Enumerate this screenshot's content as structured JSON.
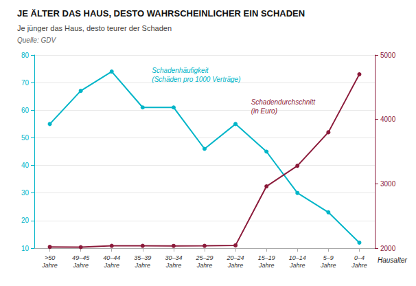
{
  "chart_data": {
    "type": "line",
    "title": "JE ÄLTER DAS HAUS, DESTO WAHRSCHEINLICHER EIN SCHADEN",
    "subtitle": "Je jünger das Haus, desto teurer der Schaden",
    "source": "Quelle: GDV",
    "xlabel": "Hausalter",
    "categories": [
      ">50\nJahre",
      "49–45\nJahre",
      "40–44\nJahre",
      "35–39\nJahre",
      "30–34\nJahre",
      "25–29\nJahre",
      "20–24\nJahre",
      "15–19\nJahre",
      "10–14\nJahre",
      "5–9\nJahre",
      "0–4\nJahre"
    ],
    "series": [
      {
        "name": "Schadenhäufigkeit\n(Schäden pro 1000 Verträge)",
        "color": "#00b5c8",
        "marker": "circle",
        "values": [
          55,
          67,
          74,
          61,
          61,
          46,
          55,
          45,
          30,
          23,
          12
        ]
      },
      {
        "name": "Schadendurchschnitt\n(in Euro)",
        "color": "#8b1a3a",
        "marker": "circle",
        "axis": "y2",
        "values": [
          2020,
          2016,
          2037,
          2037,
          2035,
          2037,
          2044,
          2960,
          3280,
          3800,
          4700
        ]
      }
    ],
    "ylim": [
      10,
      80
    ],
    "yticks": [
      10,
      20,
      30,
      40,
      50,
      60,
      70,
      80
    ],
    "y2lim": [
      2000,
      5000
    ],
    "y2ticks": [
      2000,
      3000,
      4000,
      5000
    ],
    "grid": true
  }
}
